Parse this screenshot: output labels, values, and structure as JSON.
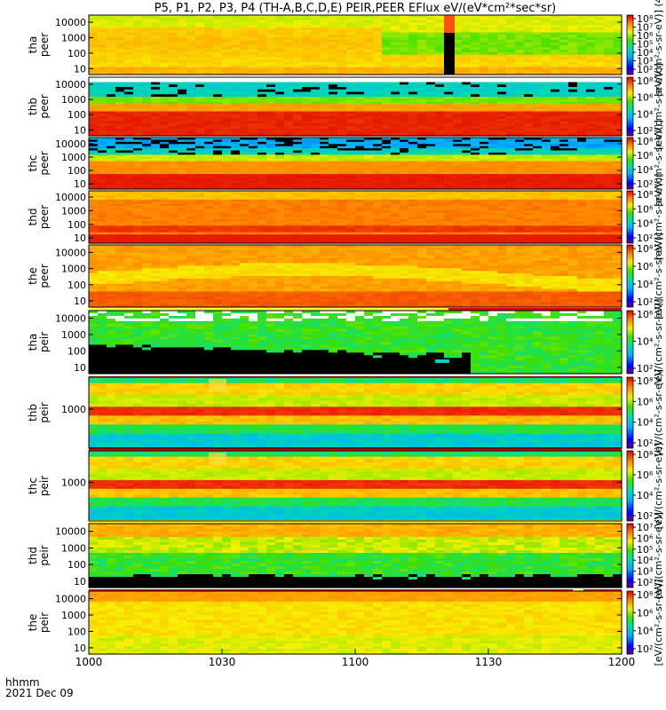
{
  "title": "P5, P1, P2, P3, P4 (TH-A,B,C,D,E) PEIR,PEER EFlux eV/(eV*cm²*sec*sr)",
  "chart_data": {
    "type": "heatmap",
    "title": "P5, P1, P2, P3, P4 (TH-A,B,C,D,E) PEIR,PEER EFlux eV/(eV*cm²*sec*sr)",
    "x_axis": {
      "label_line1": "hhmm",
      "label_line2": "2021 Dec 09",
      "ticks": [
        "1000",
        "1030",
        "1100",
        "1130",
        "1200"
      ]
    },
    "colorbar_unit": "eV/(cm2-s-sr-eV)",
    "panels": [
      {
        "id": "tha-peer",
        "line1": "tha",
        "line2": "peer",
        "yticks": [
          "10000",
          "1000",
          "100",
          "10"
        ],
        "cbticks": [
          "10⁸",
          "10⁷",
          "10⁶",
          "10⁵",
          "10⁴",
          "10³",
          "10²"
        ],
        "cbtop": "10⁸",
        "cblabel": "[eV/(cm²-s-sr-eV)] (4)"
      },
      {
        "id": "thb-peer",
        "line1": "thb",
        "line2": "peer",
        "yticks": [
          "10000",
          "1000",
          "100",
          "10"
        ],
        "cbticks": [
          "10⁸",
          "10⁶",
          "10⁴",
          "10²"
        ],
        "cbtop": "10⁸",
        "cblabel": "[eV/(cm²-s-sr-eV)]"
      },
      {
        "id": "thc-peer",
        "line1": "thc",
        "line2": "peer",
        "yticks": [
          "10000",
          "1000",
          "100",
          "10"
        ],
        "cbticks": [
          "10⁸",
          "10⁶",
          "10⁴",
          "10²"
        ],
        "cbtop": "10⁸",
        "cblabel": "[eV/(cm²-s-sr-eV)]"
      },
      {
        "id": "thd-peer",
        "line1": "thd",
        "line2": "peer",
        "yticks": [
          "10000",
          "1000",
          "100",
          "10"
        ],
        "cbticks": [
          "10⁸",
          "10⁶",
          "10⁴",
          "10²"
        ],
        "cbtop": "10⁸",
        "cblabel": "[eV/(cm²-s-sr-eV)]"
      },
      {
        "id": "the-peer",
        "line1": "the",
        "line2": "peer",
        "yticks": [
          "10000",
          "1000",
          "100",
          "10"
        ],
        "cbticks": [
          "10⁸",
          "10⁶",
          "10⁴",
          "10²"
        ],
        "cbtop": "10⁸",
        "cblabel": "[eV/(cm²-s-sr-eV)]"
      },
      {
        "id": "tha-peir",
        "line1": "tha",
        "line2": "peir",
        "yticks": [
          "10000",
          "1000",
          "100",
          "10"
        ],
        "cbticks": [
          "10⁶",
          "10⁴",
          "10²"
        ],
        "cbtop": "10⁶",
        "cblabel": "[eV/(cm²-s-sr-eV)]"
      },
      {
        "id": "thb-peir",
        "line1": "thb",
        "line2": "peir",
        "yticks": [
          "1000"
        ],
        "cbticks": [
          "10⁸",
          "10⁶",
          "10⁴",
          "10²"
        ],
        "cbtop": "10⁸",
        "cblabel": "[eV/(cm²-s-sr-eV)]"
      },
      {
        "id": "thc-peir",
        "line1": "thc",
        "line2": "peir",
        "yticks": [
          "1000"
        ],
        "cbticks": [
          "10⁸",
          "10⁶",
          "10⁴",
          "10²"
        ],
        "cbtop": "10⁸",
        "cblabel": "[eV/(cm²-s-sr-eV)]"
      },
      {
        "id": "thd-peir",
        "line1": "thd",
        "line2": "peir",
        "yticks": [
          "10000",
          "1000",
          "100",
          "10"
        ],
        "cbticks": [
          "10⁷",
          "10⁶",
          "10⁵",
          "10⁴",
          "10³",
          "10²"
        ],
        "cbtop": "10⁷",
        "cblabel": "[eV/(cm²-s-sr-eV)]"
      },
      {
        "id": "the-peir",
        "line1": "the",
        "line2": "peir",
        "yticks": [
          "10000",
          "1000",
          "100",
          "10"
        ],
        "cbticks": [
          "10⁸",
          "10⁶",
          "10⁴",
          "10²"
        ],
        "cbtop": "10⁸",
        "cblabel": "[eV/(cm²-s-sr-eV)]"
      }
    ]
  }
}
